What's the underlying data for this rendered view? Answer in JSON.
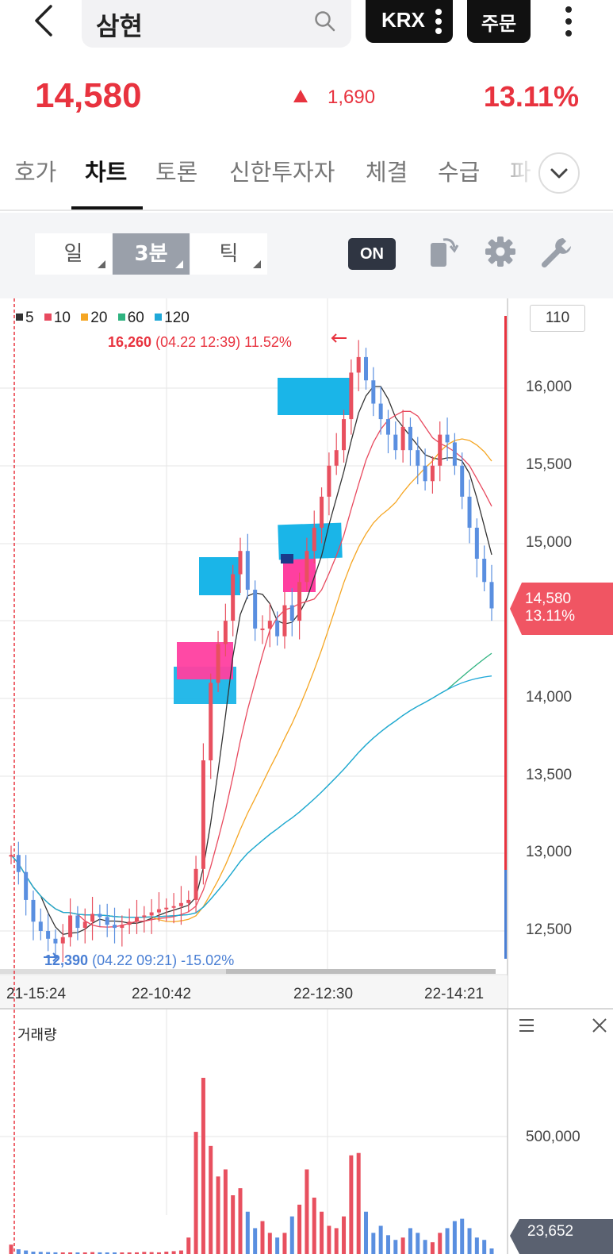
{
  "header": {
    "search_text": "삼현",
    "exchange_label": "KRX",
    "order_label": "주문"
  },
  "quote": {
    "price": "14,580",
    "change": "1,690",
    "change_direction": "up",
    "rate": "13.11%",
    "up_color": "#e8333f"
  },
  "tabs": [
    {
      "label": "호가",
      "active": false
    },
    {
      "label": "차트",
      "active": true
    },
    {
      "label": "토론",
      "active": false
    },
    {
      "label": "신한투자자",
      "active": false
    },
    {
      "label": "체결",
      "active": false
    },
    {
      "label": "수급",
      "active": false
    },
    {
      "label": "파",
      "active": false
    }
  ],
  "toolbar": {
    "periods": [
      {
        "label": "일",
        "active": false
      },
      {
        "label": "3분",
        "active": true
      },
      {
        "label": "틱",
        "active": false
      }
    ],
    "on_label": "ON"
  },
  "chart": {
    "legend": [
      {
        "label": "5",
        "color": "#333333"
      },
      {
        "label": "10",
        "color": "#e84a5f"
      },
      {
        "label": "20",
        "color": "#f5a623"
      },
      {
        "label": "60",
        "color": "#2fb380"
      },
      {
        "label": "120",
        "color": "#1fa8d8"
      }
    ],
    "max_value": "16,260",
    "max_detail": "(04.22 12:39) 11.52%",
    "min_value": "12,390",
    "min_detail": "(04.22 09:21) -15.02%",
    "count_box": "110",
    "y_ticks": [
      "16,000",
      "15,500",
      "15,000",
      "14,000",
      "13,500",
      "13,000",
      "12,500"
    ],
    "current_price": "14,580",
    "current_rate": "13.11%",
    "x_ticks": [
      "21-15:24",
      "22-10:42",
      "22-12:30",
      "22-14:21"
    ],
    "volume_title": "거래량",
    "volume_tick": "500,000",
    "volume_current": "23,652"
  },
  "chart_data": {
    "type": "candlestick",
    "interval": "3분",
    "ylim": [
      12300,
      16500
    ],
    "close_series": [
      12990,
      12880,
      12700,
      12560,
      12500,
      12450,
      12420,
      12460,
      12600,
      12520,
      12560,
      12610,
      12590,
      12540,
      12520,
      12540,
      12560,
      12590,
      12600,
      12620,
      12640,
      12650,
      12660,
      12680,
      12700,
      12900,
      13600,
      14100,
      14350,
      14500,
      14800,
      14950,
      14700,
      14450,
      14450,
      14500,
      14400,
      14600,
      14500,
      14750,
      14950,
      15100,
      15300,
      15500,
      15600,
      15800,
      16100,
      16200,
      16050,
      15900,
      15800,
      15700,
      15600,
      15750,
      15600,
      15500,
      15400,
      15500,
      15700,
      15650,
      15500,
      15300,
      15100,
      14900,
      14750,
      14580
    ],
    "volume_ylim": [
      0,
      800000
    ],
    "volume_series": [
      40000,
      20000,
      15000,
      10000,
      9000,
      8000,
      7000,
      5000,
      6000,
      5000,
      6000,
      8000,
      7000,
      6000,
      5000,
      6000,
      5000,
      7000,
      9000,
      8000,
      7000,
      10000,
      12000,
      15000,
      70000,
      520000,
      750000,
      460000,
      330000,
      360000,
      250000,
      280000,
      180000,
      110000,
      140000,
      90000,
      70000,
      90000,
      160000,
      210000,
      360000,
      240000,
      180000,
      120000,
      110000,
      160000,
      420000,
      430000,
      180000,
      90000,
      120000,
      80000,
      60000,
      70000,
      110000,
      90000,
      60000,
      50000,
      90000,
      110000,
      140000,
      150000,
      110000,
      70000,
      60000,
      23652
    ]
  }
}
